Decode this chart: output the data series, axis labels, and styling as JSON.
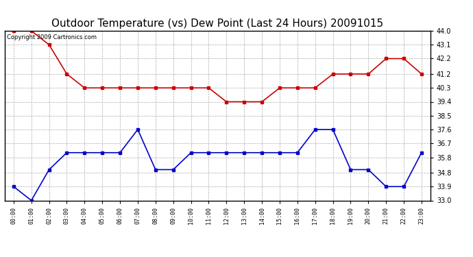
{
  "title": "Outdoor Temperature (vs) Dew Point (Last 24 Hours) 20091015",
  "copyright_text": "Copyright 2009 Cartronics.com",
  "x_labels": [
    "00:00",
    "01:00",
    "02:00",
    "03:00",
    "04:00",
    "05:00",
    "06:00",
    "07:00",
    "08:00",
    "09:00",
    "10:00",
    "11:00",
    "12:00",
    "13:00",
    "14:00",
    "15:00",
    "16:00",
    "17:00",
    "18:00",
    "19:00",
    "20:00",
    "21:00",
    "22:00",
    "23:00"
  ],
  "temp_data": [
    44.0,
    44.0,
    43.1,
    41.2,
    40.3,
    40.3,
    40.3,
    40.3,
    40.3,
    40.3,
    40.3,
    40.3,
    39.4,
    39.4,
    39.4,
    40.3,
    40.3,
    40.3,
    41.2,
    41.2,
    41.2,
    42.2,
    42.2,
    41.2
  ],
  "dew_data": [
    33.9,
    33.0,
    35.0,
    36.1,
    36.1,
    36.1,
    36.1,
    37.6,
    35.0,
    35.0,
    36.1,
    36.1,
    36.1,
    36.1,
    36.1,
    36.1,
    36.1,
    37.6,
    37.6,
    35.0,
    35.0,
    33.9,
    33.9,
    36.1
  ],
  "temp_color": "#cc0000",
  "dew_color": "#0000cc",
  "ylim_min": 33.0,
  "ylim_max": 44.0,
  "yticks": [
    33.0,
    33.9,
    34.8,
    35.8,
    36.7,
    37.6,
    38.5,
    39.4,
    40.3,
    41.2,
    42.2,
    43.1,
    44.0
  ],
  "background_color": "#ffffff",
  "grid_color": "#aaaaaa",
  "title_fontsize": 11,
  "marker": "s",
  "markersize": 2.5,
  "linewidth": 1.2
}
